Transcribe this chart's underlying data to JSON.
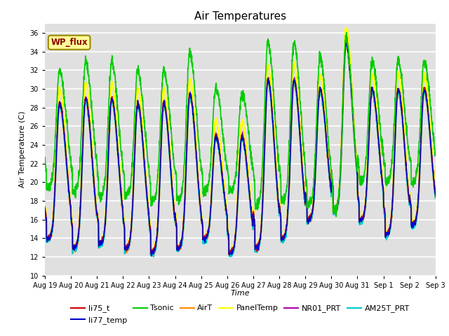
{
  "title": "Air Temperatures",
  "xlabel": "Time",
  "ylabel": "Air Temperature (C)",
  "ylim": [
    10,
    37
  ],
  "yticks": [
    10,
    12,
    14,
    16,
    18,
    20,
    22,
    24,
    26,
    28,
    30,
    32,
    34,
    36
  ],
  "background_color": "#ffffff",
  "plot_bg_color": "#e0e0e0",
  "grid_color": "#ffffff",
  "annotation_text": "WP_flux",
  "annotation_bg": "#ffff99",
  "annotation_border": "#998800",
  "annotation_text_color": "#880000",
  "series": [
    {
      "name": "li75_t",
      "color": "#cc0000",
      "lw": 1.0,
      "zorder": 5
    },
    {
      "name": "li77_temp",
      "color": "#0000cc",
      "lw": 1.0,
      "zorder": 5
    },
    {
      "name": "Tsonic",
      "color": "#00cc00",
      "lw": 1.2,
      "zorder": 6
    },
    {
      "name": "AirT",
      "color": "#ff8800",
      "lw": 1.8,
      "zorder": 4
    },
    {
      "name": "PanelTemp",
      "color": "#ffff00",
      "lw": 1.8,
      "zorder": 3
    },
    {
      "name": "NR01_PRT",
      "color": "#aa00aa",
      "lw": 1.0,
      "zorder": 4
    },
    {
      "name": "AM25T_PRT",
      "color": "#00cccc",
      "lw": 1.5,
      "zorder": 4
    }
  ],
  "tick_labels": [
    "Aug 19",
    "Aug 20",
    "Aug 21",
    "Aug 22",
    "Aug 23",
    "Aug 24",
    "Aug 25",
    "Aug 26",
    "Aug 27",
    "Aug 28",
    "Aug 29",
    "Aug 30",
    "Aug 31",
    "Sep 1",
    "Sep 2",
    "Sep 3"
  ],
  "legend_fontsize": 8,
  "title_fontsize": 11
}
